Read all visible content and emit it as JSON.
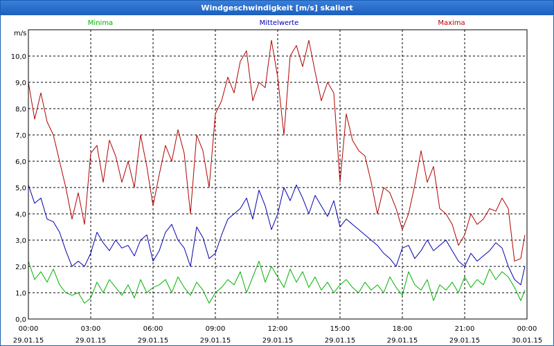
{
  "chart_data": {
    "type": "line",
    "title": "Windgeschwindigkeit [m/s] skaliert",
    "ylabel": "m/s",
    "ylim": [
      0,
      11
    ],
    "yticks": [
      {
        "value": 0,
        "label": "0,0"
      },
      {
        "value": 1,
        "label": "1,0"
      },
      {
        "value": 2,
        "label": "2,0"
      },
      {
        "value": 3,
        "label": "3,0"
      },
      {
        "value": 4,
        "label": "4,0"
      },
      {
        "value": 5,
        "label": "5,0"
      },
      {
        "value": 6,
        "label": "6,0"
      },
      {
        "value": 7,
        "label": "7,0"
      },
      {
        "value": 8,
        "label": "8,0"
      },
      {
        "value": 9,
        "label": "9,0"
      },
      {
        "value": 10,
        "label": "10,0"
      }
    ],
    "xlim": [
      0,
      24
    ],
    "xticks": [
      {
        "value": 0,
        "time": "00:00",
        "date": "29.01.15"
      },
      {
        "value": 3,
        "time": "03:00",
        "date": "29.01.15"
      },
      {
        "value": 6,
        "time": "06:00",
        "date": "29.01.15"
      },
      {
        "value": 9,
        "time": "09:00",
        "date": "29.01.15"
      },
      {
        "value": 12,
        "time": "12:00",
        "date": "29.01.15"
      },
      {
        "value": 15,
        "time": "15:00",
        "date": "29.01.15"
      },
      {
        "value": 18,
        "time": "18:00",
        "date": "29.01.15"
      },
      {
        "value": 21,
        "time": "21:00",
        "date": "29.01.15"
      },
      {
        "value": 24,
        "time": "00:00",
        "date": "30.01.15"
      }
    ],
    "grid": true,
    "series": [
      {
        "name": "Minima",
        "color": "#00b000",
        "x": [
          0,
          0.3,
          0.6,
          0.9,
          1.2,
          1.5,
          1.8,
          2.1,
          2.4,
          2.7,
          3,
          3.3,
          3.6,
          3.9,
          4.2,
          4.5,
          4.8,
          5.1,
          5.4,
          5.7,
          6,
          6.3,
          6.6,
          6.9,
          7.2,
          7.5,
          7.8,
          8.1,
          8.4,
          8.7,
          9,
          9.3,
          9.6,
          9.9,
          10.2,
          10.5,
          10.8,
          11.1,
          11.4,
          11.7,
          12,
          12.3,
          12.6,
          12.9,
          13.2,
          13.5,
          13.8,
          14.1,
          14.4,
          14.7,
          15,
          15.3,
          15.6,
          15.9,
          16.2,
          16.5,
          16.8,
          17.1,
          17.4,
          17.7,
          18,
          18.3,
          18.6,
          18.9,
          19.2,
          19.5,
          19.8,
          20.1,
          20.4,
          20.7,
          21,
          21.3,
          21.6,
          21.9,
          22.2,
          22.5,
          22.8,
          23.1,
          23.4,
          23.7,
          23.9
        ],
        "values": [
          2.2,
          1.5,
          1.8,
          1.4,
          1.9,
          1.3,
          1.0,
          0.9,
          1.0,
          0.6,
          0.8,
          1.4,
          1.0,
          1.5,
          1.2,
          0.9,
          1.3,
          0.8,
          1.5,
          1.0,
          1.2,
          1.3,
          1.5,
          1.0,
          1.6,
          1.2,
          0.9,
          1.4,
          1.1,
          0.6,
          1.0,
          1.2,
          1.5,
          1.3,
          1.8,
          1.0,
          1.6,
          2.2,
          1.4,
          2.0,
          1.6,
          1.2,
          1.9,
          1.4,
          1.8,
          1.2,
          1.6,
          1.1,
          1.4,
          1.0,
          1.3,
          1.5,
          1.2,
          1.0,
          1.4,
          1.1,
          1.3,
          1.0,
          1.6,
          1.2,
          0.9,
          1.8,
          1.3,
          1.1,
          1.5,
          0.7,
          1.3,
          1.1,
          1.4,
          1.0,
          1.6,
          1.2,
          1.5,
          1.3,
          1.9,
          1.5,
          1.8,
          1.6,
          1.2,
          0.7,
          1.1
        ]
      },
      {
        "name": "Mittelwerte",
        "color": "#0000b0",
        "x": [
          0,
          0.3,
          0.6,
          0.9,
          1.2,
          1.5,
          1.8,
          2.1,
          2.4,
          2.7,
          3,
          3.3,
          3.6,
          3.9,
          4.2,
          4.5,
          4.8,
          5.1,
          5.4,
          5.7,
          6,
          6.3,
          6.6,
          6.9,
          7.2,
          7.5,
          7.8,
          8.1,
          8.4,
          8.7,
          9,
          9.3,
          9.6,
          9.9,
          10.2,
          10.5,
          10.8,
          11.1,
          11.4,
          11.7,
          12,
          12.3,
          12.6,
          12.9,
          13.2,
          13.5,
          13.8,
          14.1,
          14.4,
          14.7,
          15,
          15.3,
          15.6,
          15.9,
          16.2,
          16.5,
          16.8,
          17.1,
          17.4,
          17.7,
          18,
          18.3,
          18.6,
          18.9,
          19.2,
          19.5,
          19.8,
          20.1,
          20.4,
          20.7,
          21,
          21.3,
          21.6,
          21.9,
          22.2,
          22.5,
          22.8,
          23.1,
          23.4,
          23.7,
          23.9
        ],
        "values": [
          5.1,
          4.4,
          4.6,
          3.8,
          3.7,
          3.3,
          2.6,
          2.0,
          2.2,
          2.0,
          2.5,
          3.3,
          2.9,
          2.6,
          3.0,
          2.7,
          2.8,
          2.4,
          3.0,
          3.2,
          2.2,
          2.6,
          3.3,
          3.6,
          3.0,
          2.7,
          2.0,
          3.5,
          3.1,
          2.3,
          2.5,
          3.2,
          3.8,
          4.0,
          4.2,
          4.6,
          3.8,
          4.9,
          4.3,
          3.4,
          4.0,
          5.0,
          4.5,
          5.1,
          4.6,
          4.0,
          4.7,
          4.3,
          3.9,
          4.5,
          3.5,
          3.8,
          3.6,
          3.4,
          3.2,
          3.0,
          2.8,
          2.5,
          2.3,
          2.0,
          2.7,
          2.8,
          2.3,
          2.6,
          3.0,
          2.6,
          2.8,
          3.0,
          2.6,
          2.2,
          2.0,
          2.5,
          2.2,
          2.4,
          2.6,
          2.9,
          2.7,
          2.0,
          1.5,
          1.3,
          2.0
        ]
      },
      {
        "name": "Maxima",
        "color": "#b00000",
        "x": [
          0,
          0.3,
          0.6,
          0.9,
          1.2,
          1.5,
          1.8,
          2.1,
          2.4,
          2.7,
          3,
          3.3,
          3.6,
          3.9,
          4.2,
          4.5,
          4.8,
          5.1,
          5.4,
          5.7,
          6,
          6.3,
          6.6,
          6.9,
          7.2,
          7.5,
          7.8,
          8.1,
          8.4,
          8.7,
          9,
          9.3,
          9.6,
          9.9,
          10.2,
          10.5,
          10.8,
          11.1,
          11.4,
          11.7,
          12,
          12.3,
          12.6,
          12.9,
          13.2,
          13.5,
          13.8,
          14.1,
          14.4,
          14.7,
          15,
          15.3,
          15.6,
          15.9,
          16.2,
          16.5,
          16.8,
          17.1,
          17.4,
          17.7,
          18,
          18.3,
          18.6,
          18.9,
          19.2,
          19.5,
          19.8,
          20.1,
          20.4,
          20.7,
          21,
          21.3,
          21.6,
          21.9,
          22.2,
          22.5,
          22.8,
          23.1,
          23.4,
          23.7,
          23.9
        ],
        "values": [
          9.0,
          7.6,
          8.6,
          7.5,
          7.0,
          6.0,
          5.0,
          3.8,
          4.8,
          3.6,
          6.3,
          6.6,
          5.2,
          6.8,
          6.2,
          5.2,
          6.0,
          5.0,
          7.0,
          5.8,
          4.3,
          5.5,
          6.6,
          6.0,
          7.2,
          6.3,
          4.0,
          7.0,
          6.4,
          5.0,
          7.8,
          8.3,
          9.2,
          8.6,
          9.8,
          10.2,
          8.3,
          9.0,
          8.8,
          10.6,
          9.2,
          7.0,
          10.0,
          10.4,
          9.6,
          10.6,
          9.4,
          8.3,
          9.0,
          8.6,
          5.2,
          7.8,
          6.8,
          6.4,
          6.2,
          5.2,
          4.0,
          5.0,
          4.8,
          4.2,
          3.4,
          4.0,
          5.1,
          6.4,
          5.2,
          5.8,
          4.2,
          4.0,
          3.6,
          2.8,
          3.2,
          4.0,
          3.6,
          3.8,
          4.2,
          4.1,
          4.6,
          4.2,
          2.2,
          2.3,
          3.2
        ]
      }
    ]
  }
}
